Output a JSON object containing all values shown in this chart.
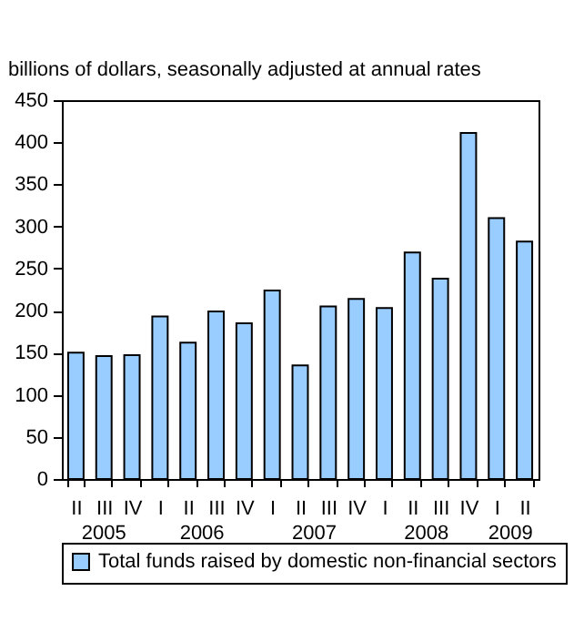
{
  "chart_data": {
    "type": "bar",
    "ylabel": "billions of dollars, seasonally adjusted at annual rates",
    "categories": [
      "II",
      "III",
      "IV",
      "I",
      "II",
      "III",
      "IV",
      "I",
      "II",
      "III",
      "IV",
      "I",
      "II",
      "III",
      "IV",
      "I",
      "II"
    ],
    "series": [
      {
        "name": "Total funds raised by domestic non-financial sectors",
        "color": "#99ccff",
        "values": [
          150,
          146,
          147,
          193,
          162,
          199,
          185,
          224,
          135,
          205,
          214,
          203,
          269,
          238,
          411,
          310,
          282
        ]
      }
    ],
    "ylim": [
      0,
      450
    ],
    "yticks": [
      0,
      50,
      100,
      150,
      200,
      250,
      300,
      350,
      400,
      450
    ],
    "grid": false,
    "legend": "bottom",
    "annotations": [
      "2005",
      "2006",
      "2007",
      "2008",
      "2009"
    ]
  }
}
